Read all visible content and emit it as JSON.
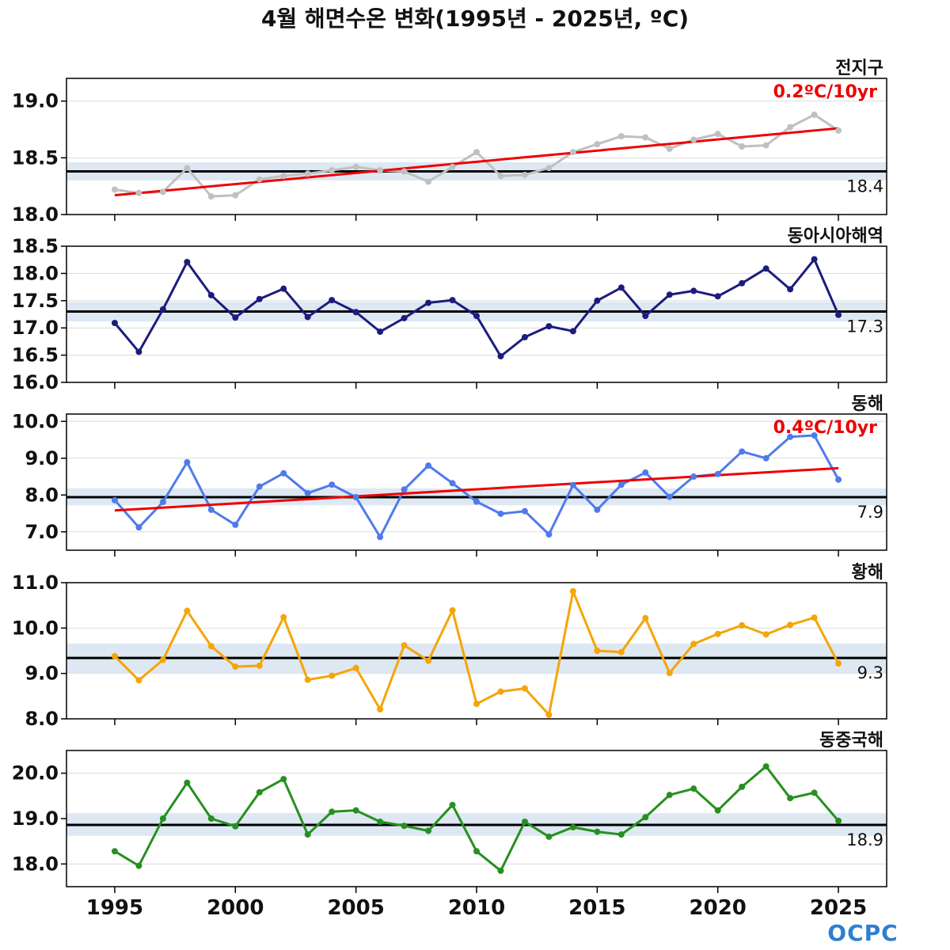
{
  "title": "4월 해면수온 변화(1995년 - 2025년, ºC)",
  "logo_text": "OCPC",
  "chart_data": [
    {
      "type": "line",
      "region": "전지구",
      "color": "#c0c0c0",
      "x": [
        1995,
        1996,
        1997,
        1998,
        1999,
        2000,
        2001,
        2002,
        2003,
        2004,
        2005,
        2006,
        2007,
        2008,
        2009,
        2010,
        2011,
        2012,
        2013,
        2014,
        2015,
        2016,
        2017,
        2018,
        2019,
        2020,
        2021,
        2022,
        2023,
        2024,
        2025
      ],
      "values": [
        18.22,
        18.19,
        18.2,
        18.41,
        18.16,
        18.17,
        18.31,
        18.34,
        18.36,
        18.39,
        18.42,
        18.39,
        18.38,
        18.29,
        18.42,
        18.55,
        18.34,
        18.35,
        18.41,
        18.55,
        18.62,
        18.69,
        18.68,
        18.58,
        18.66,
        18.71,
        18.6,
        18.61,
        18.77,
        18.88,
        18.74
      ],
      "ylim": [
        18.0,
        19.2
      ],
      "yticks": [
        "18.0",
        "18.5",
        "19.0"
      ],
      "mean": 18.38,
      "mean_label": "18.4",
      "band": [
        18.3,
        18.46
      ],
      "trend": {
        "start": 18.17,
        "end": 18.76,
        "label": "0.2ºC/10yr"
      }
    },
    {
      "type": "line",
      "region": "동아시아해역",
      "color": "#1c1c7e",
      "x": [
        1995,
        1996,
        1997,
        1998,
        1999,
        2000,
        2001,
        2002,
        2003,
        2004,
        2005,
        2006,
        2007,
        2008,
        2009,
        2010,
        2011,
        2012,
        2013,
        2014,
        2015,
        2016,
        2017,
        2018,
        2019,
        2020,
        2021,
        2022,
        2023,
        2024,
        2025
      ],
      "values": [
        17.09,
        16.56,
        17.34,
        18.21,
        17.6,
        17.19,
        17.53,
        17.72,
        17.2,
        17.51,
        17.29,
        16.93,
        17.18,
        17.46,
        17.51,
        17.22,
        16.48,
        16.83,
        17.03,
        16.94,
        17.5,
        17.74,
        17.22,
        17.61,
        17.68,
        17.58,
        17.82,
        18.09,
        17.71,
        18.26,
        17.24
      ],
      "ylim": [
        16.0,
        18.5
      ],
      "yticks": [
        "16.0",
        "16.5",
        "17.0",
        "17.5",
        "18.0",
        "18.5"
      ],
      "mean": 17.3,
      "mean_label": "17.3",
      "band": [
        17.12,
        17.48
      ],
      "trend": null
    },
    {
      "type": "line",
      "region": "동해",
      "color": "#4f7bea",
      "x": [
        1995,
        1996,
        1997,
        1998,
        1999,
        2000,
        2001,
        2002,
        2003,
        2004,
        2005,
        2006,
        2007,
        2008,
        2009,
        2010,
        2011,
        2012,
        2013,
        2014,
        2015,
        2016,
        2017,
        2018,
        2019,
        2020,
        2021,
        2022,
        2023,
        2024,
        2025
      ],
      "values": [
        7.86,
        7.12,
        7.81,
        8.89,
        7.6,
        7.19,
        8.23,
        8.59,
        8.05,
        8.28,
        7.94,
        6.86,
        8.15,
        8.8,
        8.32,
        7.82,
        7.49,
        7.56,
        6.93,
        8.27,
        7.6,
        8.28,
        8.61,
        7.95,
        8.5,
        8.57,
        9.18,
        9.0,
        9.58,
        9.62,
        8.42
      ],
      "ylim": [
        6.5,
        10.2
      ],
      "yticks": [
        "7.0",
        "8.0",
        "9.0",
        "10.0"
      ],
      "mean": 7.94,
      "mean_label": "7.9",
      "band": [
        7.72,
        8.18
      ],
      "trend": {
        "start": 7.58,
        "end": 8.73,
        "label": "0.4ºC/10yr"
      }
    },
    {
      "type": "line",
      "region": "황해",
      "color": "#f5a506",
      "x": [
        1995,
        1996,
        1997,
        1998,
        1999,
        2000,
        2001,
        2002,
        2003,
        2004,
        2005,
        2006,
        2007,
        2008,
        2009,
        2010,
        2011,
        2012,
        2013,
        2014,
        2015,
        2016,
        2017,
        2018,
        2019,
        2020,
        2021,
        2022,
        2023,
        2024,
        2025
      ],
      "values": [
        9.38,
        8.85,
        9.3,
        10.38,
        9.6,
        9.15,
        9.17,
        10.24,
        8.86,
        8.95,
        9.12,
        8.21,
        9.62,
        9.28,
        10.39,
        8.33,
        8.6,
        8.67,
        8.09,
        10.81,
        9.5,
        9.47,
        10.22,
        9.01,
        9.65,
        9.87,
        10.06,
        9.86,
        10.07,
        10.23,
        9.22
      ],
      "ylim": [
        8.0,
        11.0
      ],
      "yticks": [
        "8.0",
        "9.0",
        "10.0",
        "11.0"
      ],
      "mean": 9.34,
      "mean_label": "9.3",
      "band": [
        9.0,
        9.66
      ],
      "trend": null
    },
    {
      "type": "line",
      "region": "동중국해",
      "color": "#26901f",
      "x": [
        1995,
        1996,
        1997,
        1998,
        1999,
        2000,
        2001,
        2002,
        2003,
        2004,
        2005,
        2006,
        2007,
        2008,
        2009,
        2010,
        2011,
        2012,
        2013,
        2014,
        2015,
        2016,
        2017,
        2018,
        2019,
        2020,
        2021,
        2022,
        2023,
        2024,
        2025
      ],
      "values": [
        18.28,
        17.96,
        19.0,
        19.79,
        19.0,
        18.83,
        19.58,
        19.87,
        18.65,
        19.15,
        19.18,
        18.93,
        18.84,
        18.73,
        19.3,
        18.28,
        17.85,
        18.93,
        18.6,
        18.81,
        18.71,
        18.65,
        19.03,
        19.52,
        19.66,
        19.18,
        19.7,
        20.15,
        19.45,
        19.57,
        18.95
      ],
      "ylim": [
        17.5,
        20.5
      ],
      "yticks": [
        "18.0",
        "19.0",
        "20.0"
      ],
      "mean": 18.86,
      "mean_label": "18.9",
      "band": [
        18.62,
        19.12
      ],
      "trend": null
    }
  ],
  "x_axis": {
    "range": [
      1993,
      2027
    ],
    "ticks": [
      "1995",
      "2000",
      "2005",
      "2010",
      "2015",
      "2020",
      "2025"
    ]
  }
}
